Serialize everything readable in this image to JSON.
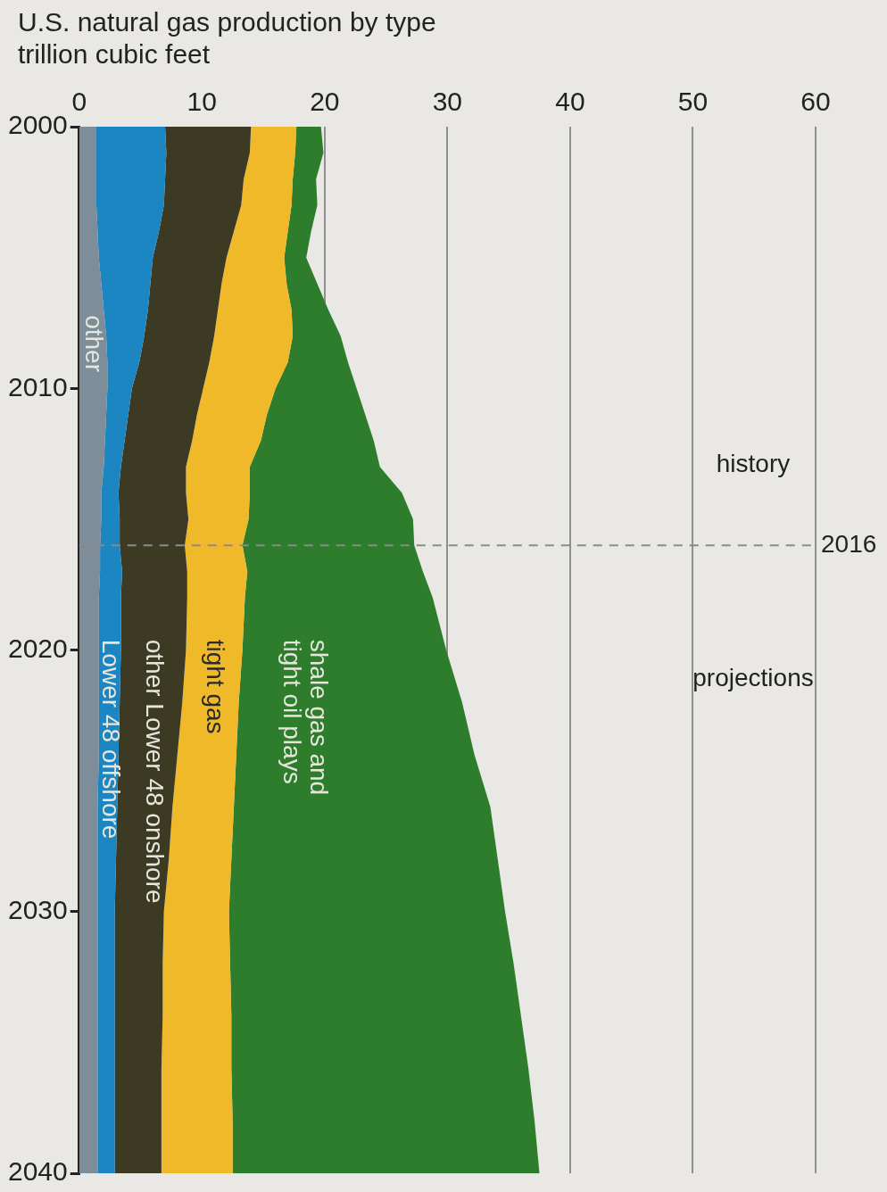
{
  "chart_data": {
    "type": "area",
    "title": "U.S. natural gas production by type",
    "subtitle": "trillion cubic feet",
    "stacked": true,
    "orientation": "horizontal",
    "x": [
      2000,
      2001,
      2002,
      2003,
      2004,
      2005,
      2006,
      2007,
      2008,
      2009,
      2010,
      2011,
      2012,
      2013,
      2014,
      2015,
      2016,
      2017,
      2018,
      2020,
      2022,
      2024,
      2026,
      2028,
      2030,
      2032,
      2034,
      2036,
      2038,
      2040
    ],
    "series": [
      {
        "name": "other",
        "color": "#7d8d99",
        "values": [
          1.4,
          1.4,
          1.4,
          1.4,
          1.5,
          1.6,
          1.8,
          2.0,
          2.2,
          2.3,
          2.3,
          2.2,
          2.1,
          2.0,
          1.8,
          1.8,
          1.7,
          1.7,
          1.6,
          1.6,
          1.6,
          1.6,
          1.5,
          1.5,
          1.5,
          1.5,
          1.5,
          1.5,
          1.5,
          1.5
        ]
      },
      {
        "name": "Lower 48 offshore",
        "color": "#1b86c2",
        "values": [
          5.6,
          5.7,
          5.6,
          5.5,
          5.0,
          4.4,
          4.0,
          3.6,
          3.1,
          2.6,
          2.0,
          1.8,
          1.6,
          1.4,
          1.4,
          1.5,
          1.6,
          1.8,
          1.8,
          1.8,
          1.7,
          1.6,
          1.6,
          1.5,
          1.4,
          1.4,
          1.4,
          1.4,
          1.4,
          1.4
        ]
      },
      {
        "name": "other Lower 48 onshore",
        "color": "#3d3a24",
        "values": [
          7.0,
          6.8,
          6.4,
          6.3,
          6.1,
          6.0,
          5.8,
          5.7,
          5.7,
          5.7,
          5.8,
          5.6,
          5.5,
          5.3,
          5.5,
          5.6,
          5.3,
          5.3,
          5.4,
          5.3,
          5.1,
          4.8,
          4.5,
          4.3,
          4.0,
          3.9,
          3.9,
          3.8,
          3.8,
          3.8
        ]
      },
      {
        "name": "tight gas",
        "color": "#f0b92a",
        "values": [
          3.7,
          3.7,
          4.0,
          4.1,
          4.4,
          4.7,
          5.3,
          6.0,
          6.4,
          6.4,
          5.9,
          5.7,
          5.6,
          5.2,
          5.2,
          4.9,
          4.7,
          4.9,
          4.7,
          4.6,
          4.6,
          4.8,
          5.0,
          5.1,
          5.3,
          5.5,
          5.6,
          5.7,
          5.8,
          5.8
        ]
      },
      {
        "name": "shale gas and tight oil plays",
        "color": "#2e7d2c",
        "values": [
          2.0,
          2.3,
          1.9,
          2.1,
          1.9,
          1.8,
          2.5,
          3.0,
          3.9,
          4.9,
          6.6,
          8.0,
          9.2,
          10.6,
          12.4,
          13.4,
          14.0,
          14.3,
          15.3,
          16.6,
          18.2,
          19.4,
          20.9,
          21.7,
          22.5,
          23.1,
          23.6,
          24.2,
          24.6,
          25.0
        ]
      }
    ],
    "xlim": [
      0,
      60
    ],
    "xticks": [
      0,
      10,
      20,
      30,
      40,
      50,
      60
    ],
    "ylim": [
      2040,
      2000
    ],
    "yticks": [
      2000,
      2010,
      2020,
      2030,
      2040
    ],
    "grid": "x",
    "legend": false,
    "ref_lines": [
      {
        "axis": "y",
        "value": 2016,
        "label": "2016",
        "line_style": "dashed",
        "color": "#8a8a8a"
      }
    ],
    "annotations": [
      "history",
      "projections"
    ]
  }
}
